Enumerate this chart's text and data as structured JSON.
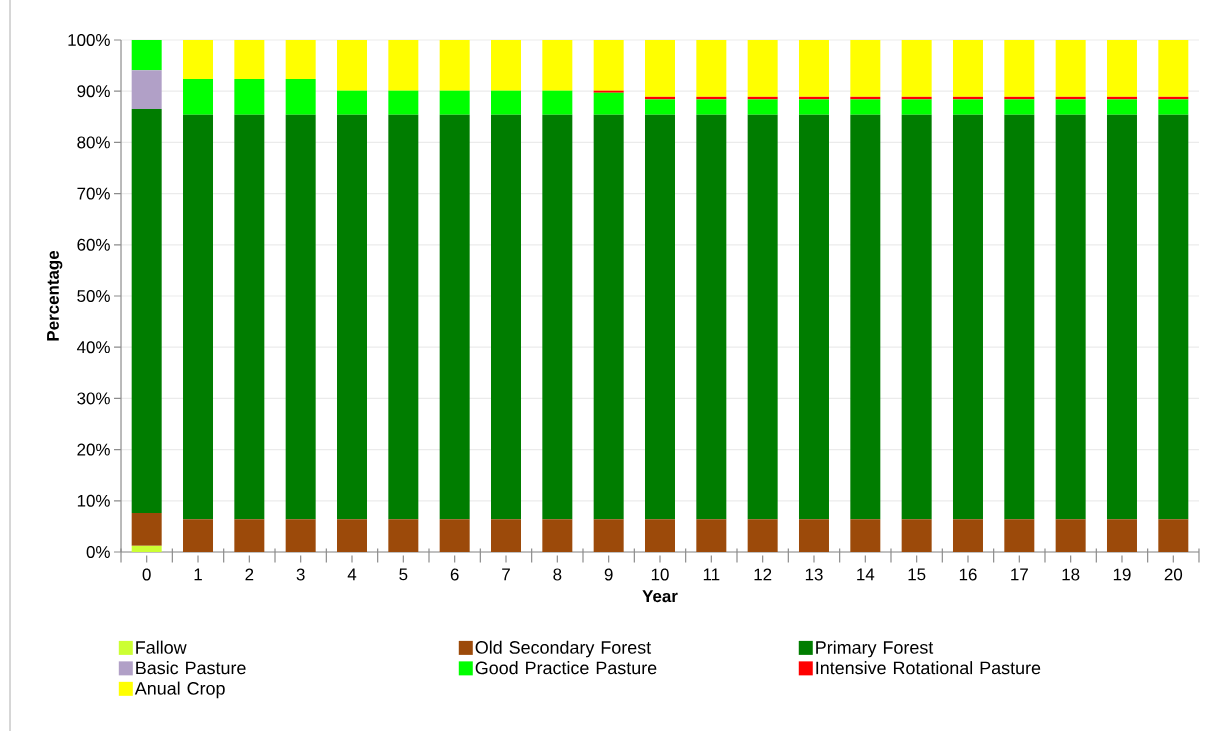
{
  "chart_data": {
    "type": "bar",
    "stacked": true,
    "xlabel": "Year",
    "ylabel": "Percentage",
    "categories": [
      "0",
      "1",
      "2",
      "3",
      "4",
      "5",
      "6",
      "7",
      "8",
      "9",
      "10",
      "11",
      "12",
      "13",
      "14",
      "15",
      "16",
      "17",
      "18",
      "19",
      "20"
    ],
    "series": [
      {
        "name": "Fallow",
        "color": "#ccff33",
        "values": [
          1.2,
          0,
          0,
          0,
          0,
          0,
          0,
          0,
          0,
          0,
          0,
          0,
          0,
          0,
          0,
          0,
          0,
          0,
          0,
          0,
          0
        ]
      },
      {
        "name": "Old Secondary Forest",
        "color": "#9c4a0a",
        "values": [
          6.4,
          6.4,
          6.4,
          6.4,
          6.4,
          6.4,
          6.4,
          6.4,
          6.4,
          6.4,
          6.4,
          6.4,
          6.4,
          6.4,
          6.4,
          6.4,
          6.4,
          6.4,
          6.4,
          6.4,
          6.4
        ]
      },
      {
        "name": "Primary Forest",
        "color": "#007d00",
        "values": [
          78.9,
          79.0,
          79.0,
          79.0,
          79.0,
          79.0,
          79.0,
          79.0,
          79.0,
          79.0,
          79.0,
          79.0,
          79.0,
          79.0,
          79.0,
          79.0,
          79.0,
          79.0,
          79.0,
          79.0,
          79.0
        ]
      },
      {
        "name": "Basic Pasture",
        "color": "#b1a0c7",
        "values": [
          7.6,
          0,
          0,
          0,
          0,
          0,
          0,
          0,
          0,
          0,
          0,
          0,
          0,
          0,
          0,
          0,
          0,
          0,
          0,
          0,
          0
        ]
      },
      {
        "name": "Good Practice Pasture",
        "color": "#00ff00",
        "values": [
          5.9,
          7.0,
          7.0,
          7.0,
          4.7,
          4.7,
          4.7,
          4.7,
          4.7,
          4.3,
          3.0,
          3.0,
          3.0,
          3.0,
          3.0,
          3.0,
          3.0,
          3.0,
          3.0,
          3.0,
          3.0
        ]
      },
      {
        "name": "Intensive Rotational Pasture",
        "color": "#ff0000",
        "values": [
          0,
          0,
          0,
          0,
          0,
          0,
          0,
          0,
          0,
          0.4,
          0.5,
          0.5,
          0.5,
          0.5,
          0.5,
          0.5,
          0.5,
          0.5,
          0.5,
          0.5,
          0.5
        ]
      },
      {
        "name": "Anual Crop",
        "color": "#ffff00",
        "values": [
          0,
          7.6,
          7.6,
          7.6,
          9.9,
          9.9,
          9.9,
          9.9,
          9.9,
          9.9,
          11.1,
          11.1,
          11.1,
          11.1,
          11.1,
          11.1,
          11.1,
          11.1,
          11.1,
          11.1,
          11.1
        ]
      }
    ],
    "ylim": [
      0,
      100
    ],
    "yticks": [
      {
        "value": 0,
        "label": "0%"
      },
      {
        "value": 10,
        "label": "10%"
      },
      {
        "value": 20,
        "label": "20%"
      },
      {
        "value": 30,
        "label": "30%"
      },
      {
        "value": 40,
        "label": "40%"
      },
      {
        "value": 50,
        "label": "50%"
      },
      {
        "value": 60,
        "label": "60%"
      },
      {
        "value": 70,
        "label": "70%"
      },
      {
        "value": 80,
        "label": "80%"
      },
      {
        "value": 90,
        "label": "90%"
      },
      {
        "value": 100,
        "label": "100%"
      }
    ],
    "grid": "y",
    "legend": "bottom"
  }
}
